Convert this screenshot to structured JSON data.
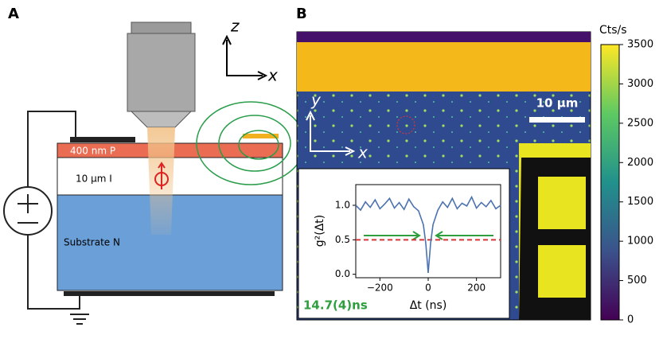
{
  "panel_a": {
    "label": "A",
    "axis_z": "z",
    "axis_x": "x",
    "layer_p": "400 nm P",
    "layer_i": "10 µm I",
    "layer_n": "Substrate N"
  },
  "panel_b": {
    "label": "B",
    "axis_y": "y",
    "axis_x": "x",
    "scale_bar": "10 µm",
    "colorbar": {
      "title": "Cts/s",
      "lim": [
        0,
        3500
      ],
      "ticks": [
        0,
        500,
        1000,
        1500,
        2000,
        2500,
        3000,
        3500
      ]
    },
    "inset": {
      "chart_data": {
        "type": "line",
        "xlabel": "Δt (ns)",
        "ylabel": "g²(Δt)",
        "annotation": "14.7(4)ns",
        "xlim": [
          -300,
          300
        ],
        "ylim": [
          -0.05,
          1.3
        ],
        "xticks": [
          {
            "value": -200,
            "label": "−200"
          },
          0,
          200
        ],
        "yticks": [
          {
            "value": 0,
            "label": "0.0"
          },
          0.5,
          {
            "value": 1,
            "label": "1.0"
          }
        ],
        "reference_line": 0.5,
        "color": "#4c72b0",
        "x": [
          -300,
          -280,
          -260,
          -240,
          -220,
          -200,
          -180,
          -160,
          -140,
          -120,
          -100,
          -80,
          -60,
          -40,
          -20,
          -10,
          0,
          10,
          20,
          40,
          60,
          80,
          100,
          120,
          140,
          160,
          180,
          200,
          220,
          240,
          260,
          280,
          300
        ],
        "values": [
          1.0,
          0.93,
          1.05,
          0.97,
          1.08,
          0.95,
          1.02,
          1.1,
          0.96,
          1.04,
          0.94,
          1.09,
          0.98,
          0.92,
          0.72,
          0.45,
          0.02,
          0.45,
          0.72,
          0.93,
          1.05,
          0.97,
          1.1,
          0.95,
          1.03,
          0.99,
          1.12,
          0.96,
          1.04,
          0.98,
          1.07,
          0.95,
          1.0
        ]
      }
    }
  }
}
